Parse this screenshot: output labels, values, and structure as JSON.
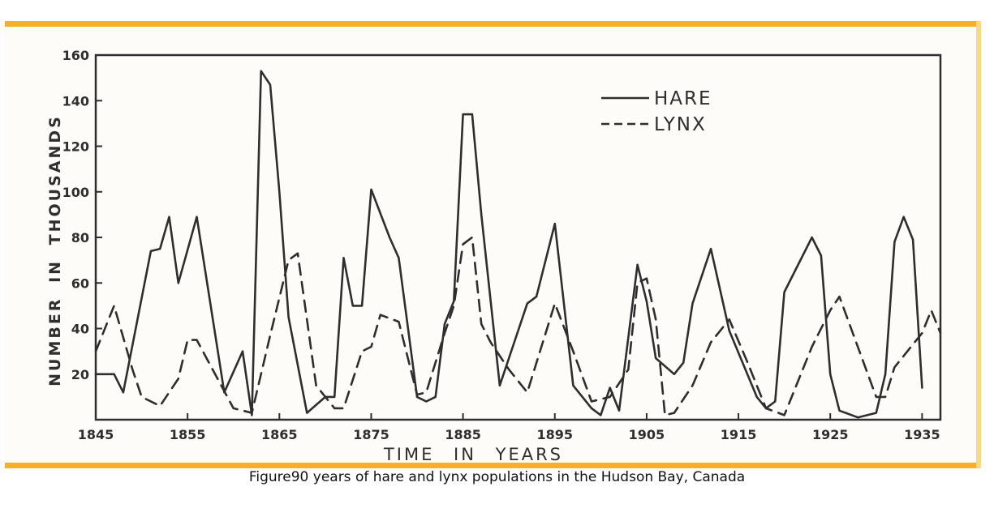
{
  "caption": "Figure90 years of hare and lynx populations in the Hudson Bay, Canada",
  "colors": {
    "frame": "#f3b12a",
    "ink": "#2e2e2e"
  },
  "chart_data": {
    "type": "line",
    "xlabel": "TIME IN YEARS",
    "ylabel": "NUMBER IN THOUSANDS",
    "xlim": [
      1845,
      1937
    ],
    "ylim": [
      0,
      160
    ],
    "xticks": [
      1845,
      1855,
      1865,
      1875,
      1885,
      1895,
      1905,
      1915,
      1925,
      1935
    ],
    "yticks": [
      20,
      40,
      60,
      80,
      100,
      120,
      140,
      160
    ],
    "grid": false,
    "legend": "top-right",
    "series": [
      {
        "name": "HARE",
        "style": "solid",
        "x": [
          1845,
          1847,
          1848,
          1851,
          1852,
          1853,
          1854,
          1856,
          1859,
          1861,
          1862,
          1863,
          1864,
          1865,
          1866,
          1868,
          1870,
          1871,
          1872,
          1873,
          1874,
          1875,
          1877,
          1878,
          1880,
          1881,
          1882,
          1883,
          1884,
          1885,
          1886,
          1887,
          1889,
          1892,
          1893,
          1895,
          1897,
          1899,
          1900,
          1901,
          1902,
          1904,
          1905,
          1906,
          1908,
          1909,
          1910,
          1912,
          1914,
          1917,
          1918,
          1919,
          1920,
          1923,
          1924,
          1925,
          1926,
          1928,
          1930,
          1931,
          1932,
          1933,
          1934,
          1935
        ],
        "values": [
          20,
          20,
          12,
          74,
          75,
          89,
          60,
          89,
          12,
          30,
          2,
          153,
          147,
          100,
          45,
          3,
          10,
          10,
          71,
          50,
          50,
          101,
          80,
          71,
          10,
          8,
          10,
          42,
          52,
          134,
          134,
          90,
          15,
          51,
          54,
          86,
          15,
          5,
          2,
          14,
          4,
          68,
          52,
          27,
          20,
          25,
          51,
          75,
          39,
          10,
          5,
          8,
          56,
          80,
          72,
          20,
          4,
          1,
          3,
          20,
          78,
          89,
          79,
          14
        ]
      },
      {
        "name": "LYNX",
        "style": "dashed",
        "x": [
          1845,
          1847,
          1849,
          1850,
          1852,
          1854,
          1855,
          1856,
          1858,
          1860,
          1862,
          1864,
          1866,
          1867,
          1869,
          1871,
          1872,
          1874,
          1875,
          1876,
          1878,
          1880,
          1881,
          1883,
          1884,
          1885,
          1886,
          1887,
          1888,
          1890,
          1892,
          1895,
          1897,
          1899,
          1901,
          1903,
          1904,
          1905,
          1906,
          1907,
          1908,
          1910,
          1912,
          1914,
          1916,
          1918,
          1920,
          1923,
          1925,
          1926,
          1930,
          1931,
          1932,
          1935,
          1936,
          1937
        ],
        "values": [
          30,
          50,
          22,
          10,
          6,
          18,
          35,
          35,
          20,
          5,
          3,
          37,
          70,
          73,
          15,
          5,
          5,
          30,
          32,
          46,
          43,
          11,
          12,
          38,
          50,
          77,
          80,
          42,
          34,
          22,
          12,
          51,
          30,
          8,
          10,
          22,
          60,
          62,
          44,
          2,
          3,
          15,
          34,
          44,
          25,
          5,
          2,
          32,
          48,
          54,
          10,
          10,
          23,
          38,
          48,
          38
        ]
      }
    ]
  }
}
